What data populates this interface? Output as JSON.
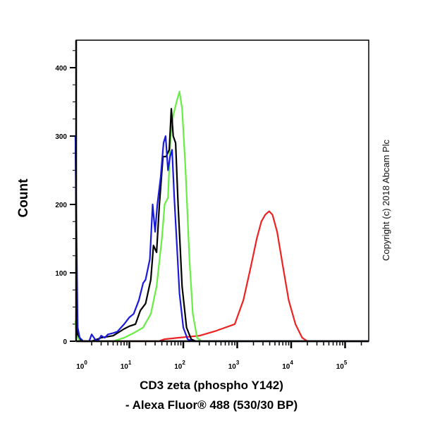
{
  "chart_data": {
    "type": "line",
    "title": "",
    "xlabel_line1": "CD3 zeta (phospho Y142)",
    "xlabel_line2": "- Alexa Fluor® 488 (530/30 BP)",
    "ylabel": "Count",
    "x_scale": "log",
    "xlim": [
      1,
      280000
    ],
    "ylim": [
      0,
      438
    ],
    "x_ticks": [
      {
        "base": "10",
        "exp": "0"
      },
      {
        "base": "10",
        "exp": "1"
      },
      {
        "base": "10",
        "exp": "2"
      },
      {
        "base": "10",
        "exp": "3"
      },
      {
        "base": "10",
        "exp": "4"
      },
      {
        "base": "10",
        "exp": "5"
      }
    ],
    "y_ticks": [
      "0",
      "100",
      "200",
      "300",
      "400"
    ],
    "grid": false,
    "legend": "none",
    "series": [
      {
        "color": "#1a1adc",
        "points": [
          [
            1,
            300
          ],
          [
            1.05,
            150
          ],
          [
            1.1,
            20
          ],
          [
            1.2,
            5
          ],
          [
            1.4,
            0
          ],
          [
            1.8,
            0
          ],
          [
            2,
            10
          ],
          [
            2.3,
            3
          ],
          [
            2.6,
            0
          ],
          [
            3,
            8
          ],
          [
            3.5,
            5
          ],
          [
            4,
            10
          ],
          [
            5,
            12
          ],
          [
            6,
            14
          ],
          [
            8,
            25
          ],
          [
            10,
            35
          ],
          [
            12,
            40
          ],
          [
            15,
            60
          ],
          [
            18,
            85
          ],
          [
            20,
            90
          ],
          [
            24,
            120
          ],
          [
            27,
            200
          ],
          [
            30,
            160
          ],
          [
            33,
            200
          ],
          [
            38,
            240
          ],
          [
            43,
            290
          ],
          [
            47,
            300
          ],
          [
            52,
            250
          ],
          [
            57,
            270
          ],
          [
            62,
            280
          ],
          [
            68,
            210
          ],
          [
            75,
            150
          ],
          [
            85,
            70
          ],
          [
            100,
            20
          ],
          [
            120,
            3
          ],
          [
            150,
            0
          ],
          [
            280000,
            0
          ]
        ]
      },
      {
        "color": "#000000",
        "points": [
          [
            1,
            300
          ],
          [
            1.05,
            100
          ],
          [
            1.1,
            10
          ],
          [
            1.3,
            0
          ],
          [
            2,
            0
          ],
          [
            3,
            5
          ],
          [
            5,
            8
          ],
          [
            8,
            18
          ],
          [
            10,
            22
          ],
          [
            13,
            25
          ],
          [
            16,
            45
          ],
          [
            20,
            55
          ],
          [
            25,
            90
          ],
          [
            28,
            140
          ],
          [
            32,
            130
          ],
          [
            36,
            200
          ],
          [
            42,
            270
          ],
          [
            48,
            270
          ],
          [
            55,
            280
          ],
          [
            60,
            340
          ],
          [
            65,
            300
          ],
          [
            72,
            290
          ],
          [
            80,
            200
          ],
          [
            95,
            80
          ],
          [
            115,
            20
          ],
          [
            140,
            3
          ],
          [
            170,
            0
          ],
          [
            280000,
            0
          ]
        ]
      },
      {
        "color": "#66ee44",
        "points": [
          [
            1,
            30
          ],
          [
            1.05,
            10
          ],
          [
            1.2,
            0
          ],
          [
            5,
            0
          ],
          [
            8,
            5
          ],
          [
            12,
            12
          ],
          [
            18,
            20
          ],
          [
            25,
            40
          ],
          [
            32,
            80
          ],
          [
            40,
            150
          ],
          [
            45,
            200
          ],
          [
            52,
            210
          ],
          [
            58,
            300
          ],
          [
            65,
            330
          ],
          [
            75,
            350
          ],
          [
            85,
            365
          ],
          [
            95,
            340
          ],
          [
            110,
            250
          ],
          [
            130,
            120
          ],
          [
            150,
            40
          ],
          [
            180,
            5
          ],
          [
            220,
            0
          ],
          [
            280000,
            0
          ]
        ]
      },
      {
        "color": "#ee2222",
        "points": [
          [
            1,
            0
          ],
          [
            35,
            0
          ],
          [
            45,
            3
          ],
          [
            80,
            5
          ],
          [
            200,
            8
          ],
          [
            400,
            15
          ],
          [
            600,
            20
          ],
          [
            900,
            25
          ],
          [
            1300,
            60
          ],
          [
            1800,
            110
          ],
          [
            2300,
            150
          ],
          [
            2800,
            175
          ],
          [
            3300,
            185
          ],
          [
            3900,
            190
          ],
          [
            4500,
            185
          ],
          [
            5500,
            160
          ],
          [
            7000,
            110
          ],
          [
            9000,
            60
          ],
          [
            12000,
            25
          ],
          [
            16000,
            5
          ],
          [
            20000,
            0
          ],
          [
            280000,
            0
          ]
        ]
      }
    ]
  },
  "copyright": "Copyright (c) 2018 Abcam Plc"
}
